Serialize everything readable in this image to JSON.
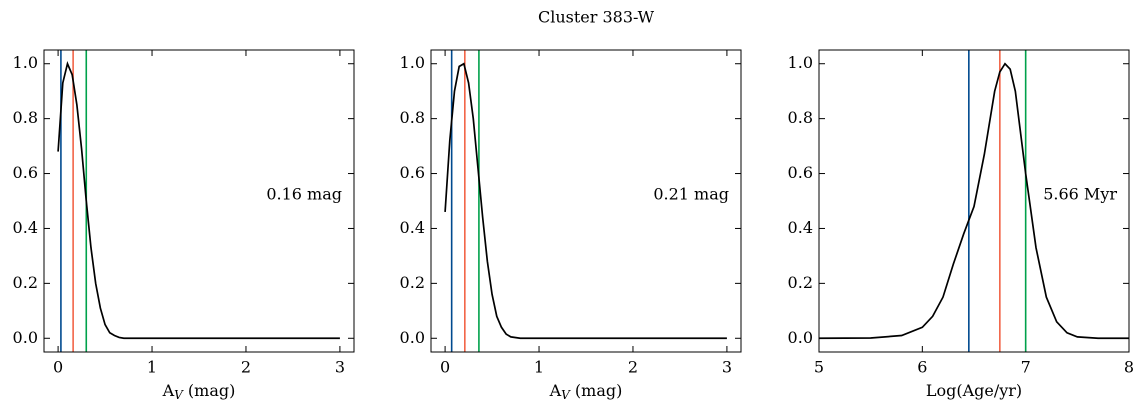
{
  "title": "Cluster 383-W",
  "chart_data": [
    {
      "type": "line",
      "color": "#000000",
      "x": [
        0,
        0.05,
        0.1,
        0.15,
        0.2,
        0.25,
        0.3,
        0.35,
        0.4,
        0.45,
        0.5,
        0.55,
        0.6,
        0.65,
        0.7,
        0.8,
        1,
        1.5,
        2,
        2.5,
        3
      ],
      "values": [
        0.68,
        0.93,
        1.0,
        0.96,
        0.85,
        0.69,
        0.5,
        0.33,
        0.2,
        0.11,
        0.05,
        0.02,
        0.01,
        0.003,
        0,
        0,
        0,
        0,
        0,
        0,
        0
      ],
      "vlines": [
        {
          "x": 0.03,
          "color": "#004a8f"
        },
        {
          "x": 0.16,
          "color": "#f26447"
        },
        {
          "x": 0.3,
          "color": "#00a14b"
        }
      ],
      "annotation": "0.16 mag",
      "xlabel": [
        "A",
        "V",
        " (mag)"
      ],
      "xlim": [
        -0.15,
        3.15
      ],
      "xticks": [
        0,
        1,
        2,
        3
      ],
      "ylim": [
        -0.05,
        1.05
      ],
      "yticks": [
        {
          "value": 0,
          "label": "0.0"
        },
        0.2,
        0.4,
        0.6,
        0.8,
        {
          "value": 1,
          "label": "1.0"
        }
      ]
    },
    {
      "type": "line",
      "color": "#000000",
      "x": [
        0,
        0.05,
        0.1,
        0.15,
        0.2,
        0.25,
        0.3,
        0.35,
        0.4,
        0.45,
        0.5,
        0.55,
        0.6,
        0.65,
        0.7,
        0.8,
        1,
        1.5,
        2,
        2.5,
        3
      ],
      "values": [
        0.46,
        0.72,
        0.9,
        0.99,
        1.0,
        0.93,
        0.8,
        0.62,
        0.44,
        0.28,
        0.16,
        0.08,
        0.04,
        0.015,
        0.005,
        0,
        0,
        0,
        0,
        0,
        0
      ],
      "vlines": [
        {
          "x": 0.07,
          "color": "#004a8f"
        },
        {
          "x": 0.21,
          "color": "#f26447"
        },
        {
          "x": 0.36,
          "color": "#00a14b"
        }
      ],
      "annotation": "0.21 mag",
      "xlabel": [
        "A",
        "V",
        " (mag)"
      ],
      "xlim": [
        -0.15,
        3.15
      ],
      "xticks": [
        0,
        1,
        2,
        3
      ],
      "ylim": [
        -0.05,
        1.05
      ],
      "yticks": [
        {
          "value": 0,
          "label": "0.0"
        },
        0.2,
        0.4,
        0.6,
        0.8,
        {
          "value": 1,
          "label": "1.0"
        }
      ]
    },
    {
      "type": "line",
      "color": "#000000",
      "x": [
        5,
        5.5,
        5.8,
        6.0,
        6.1,
        6.2,
        6.3,
        6.4,
        6.45,
        6.5,
        6.6,
        6.7,
        6.75,
        6.8,
        6.85,
        6.9,
        7.0,
        7.1,
        7.2,
        7.3,
        7.4,
        7.5,
        7.7,
        8
      ],
      "values": [
        0,
        0.001,
        0.01,
        0.04,
        0.08,
        0.15,
        0.27,
        0.38,
        0.43,
        0.48,
        0.67,
        0.9,
        0.97,
        1.0,
        0.98,
        0.9,
        0.6,
        0.33,
        0.15,
        0.06,
        0.02,
        0.005,
        0,
        0
      ],
      "vlines": [
        {
          "x": 6.45,
          "color": "#004a8f"
        },
        {
          "x": 6.75,
          "color": "#f26447"
        },
        {
          "x": 7.0,
          "color": "#00a14b"
        }
      ],
      "annotation": "5.66 Myr",
      "xlabel": [
        "Log(Age/yr)"
      ],
      "xlim": [
        5,
        8
      ],
      "xticks": [
        5,
        6,
        7,
        8
      ],
      "ylim": [
        -0.05,
        1.05
      ],
      "yticks": [
        {
          "value": 0,
          "label": "0.0"
        },
        0.2,
        0.4,
        0.6,
        0.8,
        {
          "value": 1,
          "label": "1.0"
        }
      ]
    }
  ]
}
